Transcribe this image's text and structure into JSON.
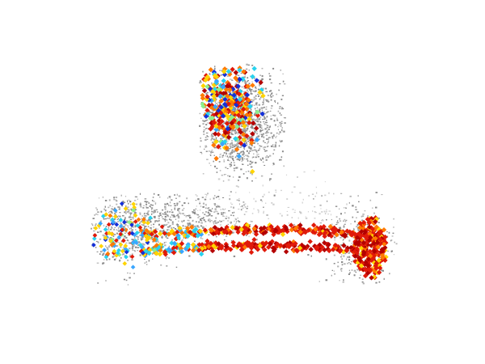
{
  "figure": {
    "background": "#ffffff",
    "palette": {
      "mesh": "#8c8c8c",
      "mesh_light": "#b4b4b4",
      "hot_dark": "#b40000",
      "hot": "#e01a0a",
      "warm": "#ff7a00",
      "yellow": "#ffd400",
      "cyan": "#29d3ee",
      "light_blue": "#3aa6ff",
      "blue": "#1430d8",
      "light_green": "#8cf08c"
    }
  }
}
